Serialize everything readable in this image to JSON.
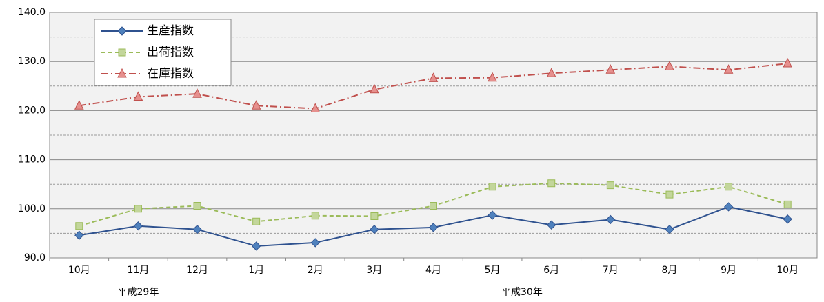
{
  "chart_data": {
    "type": "line",
    "categories": [
      "10月",
      "11月",
      "12月",
      "1月",
      "2月",
      "3月",
      "4月",
      "5月",
      "6月",
      "7月",
      "8月",
      "9月",
      "10月"
    ],
    "x_groups": [
      {
        "label": "平成29年",
        "start": 0,
        "end": 2
      },
      {
        "label": "平成30年",
        "start": 3,
        "end": 12
      }
    ],
    "series": [
      {
        "name": "生産指数",
        "color": "#2f528f",
        "marker": "diamond",
        "marker_fill": "#4f81bd",
        "dash": "solid",
        "values": [
          94.6,
          96.5,
          95.8,
          92.4,
          93.1,
          95.8,
          96.2,
          98.7,
          96.7,
          97.8,
          95.8,
          100.4,
          97.9
        ]
      },
      {
        "name": "出荷指数",
        "color": "#9bbb59",
        "marker": "square",
        "marker_fill": "#c3d69b",
        "dash": "dashed",
        "values": [
          96.5,
          100.0,
          100.6,
          97.4,
          98.6,
          98.5,
          100.6,
          104.5,
          105.2,
          104.8,
          102.9,
          104.5,
          100.9
        ]
      },
      {
        "name": "在庫指数",
        "color": "#c0504d",
        "marker": "triangle",
        "marker_fill": "#e6908e",
        "dash": "dashdot",
        "values": [
          121.0,
          122.8,
          123.4,
          121.0,
          120.4,
          124.3,
          126.6,
          126.7,
          127.6,
          128.3,
          129.0,
          128.3,
          129.6
        ]
      }
    ],
    "ylim": [
      90,
      140
    ],
    "yticks": [
      {
        "value": 90,
        "label": "90.0"
      },
      {
        "value": 100,
        "label": "100.0"
      },
      {
        "value": 110,
        "label": "110.0"
      },
      {
        "value": 120,
        "label": "120.0"
      },
      {
        "value": 130,
        "label": "130.0"
      },
      {
        "value": 140,
        "label": "140.0"
      }
    ],
    "minor_yticks": [
      95,
      105,
      115,
      125,
      135
    ],
    "grid": true,
    "legend": "top-left"
  }
}
